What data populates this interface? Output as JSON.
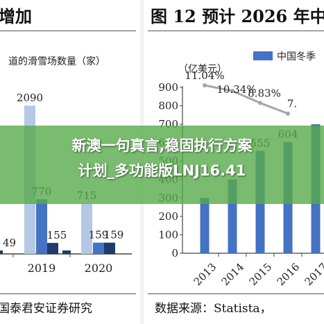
{
  "left_figure": {
    "title": "增加",
    "ylabel": "道的滑雪场数量（家）",
    "source": "国泰君安证券研究"
  },
  "right_figure": {
    "title": "图 12 预计 2026 年中",
    "ylabel": "（亿美元）",
    "legend_label": "中国冬季",
    "source": "数据来源：Statista，"
  },
  "overlay": {
    "line1": "新澳一句真言,稳固执行方案",
    "line2": "计划_多功能版LNJ16.41",
    "color": "#58aa4b"
  },
  "chart_data": [
    {
      "type": "bar",
      "categories": [
        "2019",
        "2020"
      ],
      "series": [
        {
          "values": [
            2090,
            715
          ],
          "color": "#b4c8e6"
        },
        {
          "values": [
            770,
            159
          ],
          "color": "#4472c4"
        },
        {
          "values": [
            155,
            159
          ],
          "color": "#1f3c6e"
        }
      ],
      "partial_values": [
        "49",
        "49"
      ],
      "ylim": [
        0,
        2600
      ],
      "xlabel": "",
      "ylabel": "道的滑雪场数量（家）"
    },
    {
      "type": "bar",
      "categories": [
        "2013",
        "2014",
        "2015",
        "2016",
        "2017"
      ],
      "series": [
        {
          "name": "中国冬季",
          "values": [
            300,
            400,
            555,
            604,
            700
          ],
          "color": "#4472c4"
        }
      ],
      "value_labels": [
        "",
        "",
        "555",
        "604",
        ""
      ],
      "growth_line": {
        "values": [
          11.04,
          10.34,
          8.83,
          7.5
        ],
        "labels": [
          "11.04%",
          "10.34%",
          "8.83%",
          "7."
        ],
        "color": "#a6a6a6"
      },
      "yticks": [
        0,
        100,
        200,
        300,
        400,
        500,
        600,
        700,
        800,
        900
      ],
      "ylim": [
        0,
        900
      ],
      "xlabel": "",
      "ylabel": "（亿美元）",
      "grid": false,
      "legend_position": "top-right"
    }
  ]
}
